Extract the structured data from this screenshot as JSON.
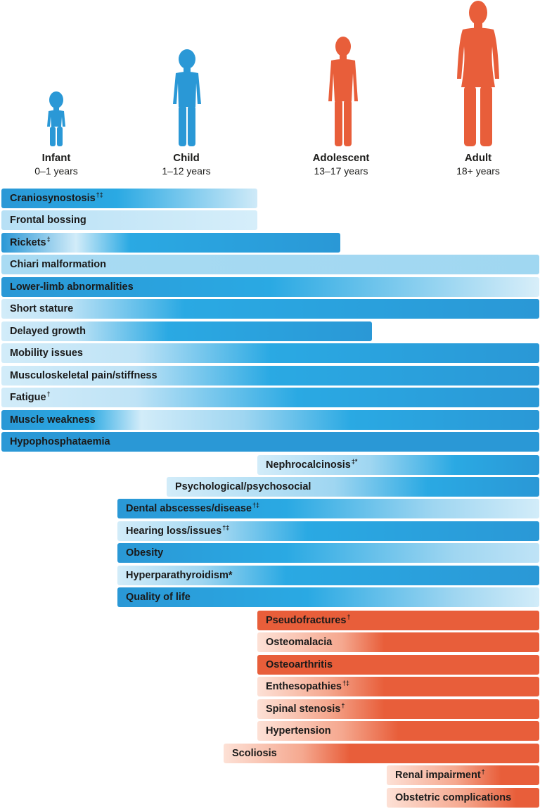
{
  "colors": {
    "blue_dark": "#2a98d6",
    "blue_mid": "#2aa9e3",
    "blue_light": "#cfeaf8",
    "orange": "#e85e3a",
    "orange_light": "#fde1d6"
  },
  "stages": [
    {
      "name": "Infant",
      "range": "0–1 years",
      "icon": "infant-figure-icon"
    },
    {
      "name": "Child",
      "range": "1–12 years",
      "icon": "child-figure-icon"
    },
    {
      "name": "Adolescent",
      "range": "13–17 years",
      "icon": "adolescent-figure-icon"
    },
    {
      "name": "Adult",
      "range": "18+ years",
      "icon": "adult-figure-icon"
    }
  ],
  "bars": [
    {
      "label": "Craniosynostosis",
      "mark": "†‡"
    },
    {
      "label": "Frontal bossing",
      "mark": ""
    },
    {
      "label": "Rickets",
      "mark": "‡"
    },
    {
      "label": "Chiari malformation",
      "mark": ""
    },
    {
      "label": "Lower-limb abnormalities",
      "mark": ""
    },
    {
      "label": "Short stature",
      "mark": ""
    },
    {
      "label": "Delayed growth",
      "mark": ""
    },
    {
      "label": "Mobility issues",
      "mark": ""
    },
    {
      "label": "Musculoskeletal pain/stiffness",
      "mark": ""
    },
    {
      "label": "Fatigue",
      "mark": "†"
    },
    {
      "label": "Muscle weakness",
      "mark": ""
    },
    {
      "label": "Hypophosphataemia",
      "mark": ""
    },
    {
      "label": "Nephrocalcinosis",
      "mark": "‡*"
    },
    {
      "label": "Psychological/psychosocial",
      "mark": ""
    },
    {
      "label": "Dental abscesses/disease",
      "mark": "†‡"
    },
    {
      "label": "Hearing loss/issues",
      "mark": "†‡"
    },
    {
      "label": "Obesity",
      "mark": ""
    },
    {
      "label": "Hyperparathyroidism*",
      "mark": ""
    },
    {
      "label": "Quality of life",
      "mark": ""
    },
    {
      "label": "Pseudofractures",
      "mark": "†"
    },
    {
      "label": "Osteomalacia",
      "mark": ""
    },
    {
      "label": "Osteoarthritis",
      "mark": ""
    },
    {
      "label": "Enthesopathies",
      "mark": "†‡"
    },
    {
      "label": "Spinal stenosis",
      "mark": "†"
    },
    {
      "label": "Hypertension",
      "mark": ""
    },
    {
      "label": "Scoliosis",
      "mark": ""
    },
    {
      "label": "Renal impairment",
      "mark": "†"
    },
    {
      "label": "Obstetric complications",
      "mark": ""
    }
  ]
}
